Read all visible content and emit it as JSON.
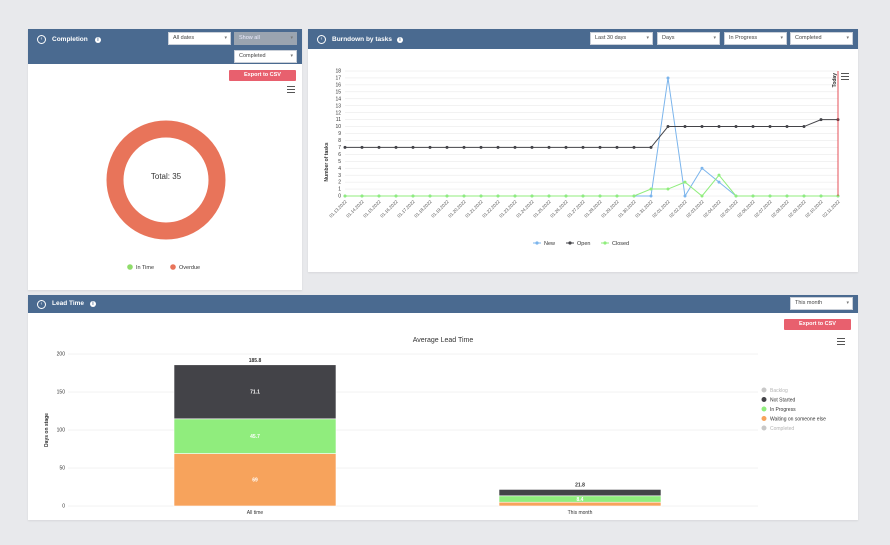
{
  "completion": {
    "title": "Completion",
    "filter_dates": "All dates",
    "filter_show": "Show all",
    "filter_status": "Completed",
    "export_label": "Export to CSV",
    "total_text": "Total: 35",
    "legend": [
      {
        "label": "In Time",
        "color": "#8fdc6a"
      },
      {
        "label": "Overdue",
        "color": "#e8745a"
      }
    ],
    "colors": {
      "donut": "#e8745a"
    }
  },
  "burndown": {
    "title": "Burndown by tasks",
    "filter_range": "Last 30 days",
    "filter_unit": "Days",
    "filter_status_from": "In Progress",
    "filter_status_to": "Completed",
    "today_label": "Today",
    "legend": [
      {
        "label": "New",
        "color": "#7cb5ec"
      },
      {
        "label": "Open",
        "color": "#434348"
      },
      {
        "label": "Closed",
        "color": "#90ed7d"
      }
    ]
  },
  "leadtime": {
    "title": "Lead Time",
    "filter_period": "This month",
    "export_label": "Export to CSV",
    "legend": [
      {
        "label": "Backlog",
        "color": "#c8c8c8",
        "muted": true
      },
      {
        "label": "Not Started",
        "color": "#434348",
        "muted": false
      },
      {
        "label": "In Progress",
        "color": "#90ed7d",
        "muted": false
      },
      {
        "label": "Waiting on someone else",
        "color": "#f7a35c",
        "muted": false
      },
      {
        "label": "Completed",
        "color": "#c8c8c8",
        "muted": true
      }
    ]
  },
  "chart_data": [
    {
      "type": "pie",
      "title": "Total: 35",
      "categories": [
        "In Time",
        "Overdue"
      ],
      "values": [
        0,
        35
      ]
    },
    {
      "type": "line",
      "title": "",
      "ylabel": "Number of tasks",
      "xlabel": "",
      "ylim": [
        0,
        18
      ],
      "yticks": [
        0,
        1,
        2,
        3,
        4,
        5,
        6,
        7,
        8,
        9,
        10,
        11,
        12,
        13,
        14,
        15,
        16,
        17,
        18
      ],
      "x": [
        "01.13.2022",
        "01.14.2022",
        "01.15.2022",
        "01.16.2022",
        "01.17.2022",
        "01.18.2022",
        "01.19.2022",
        "01.20.2022",
        "01.21.2022",
        "01.22.2022",
        "01.23.2022",
        "01.24.2022",
        "01.25.2022",
        "01.26.2022",
        "01.27.2022",
        "01.28.2022",
        "01.29.2022",
        "01.30.2022",
        "01.31.2022",
        "02.01.2022",
        "02.02.2022",
        "02.03.2022",
        "02.04.2022",
        "02.05.2022",
        "02.06.2022",
        "02.07.2022",
        "02.08.2022",
        "02.09.2022",
        "02.10.2022",
        "02.11.2022"
      ],
      "series": [
        {
          "name": "New",
          "values": [
            0,
            0,
            0,
            0,
            0,
            0,
            0,
            0,
            0,
            0,
            0,
            0,
            0,
            0,
            0,
            0,
            0,
            0,
            0,
            17,
            0,
            4,
            2,
            0,
            0,
            0,
            0,
            0,
            0,
            0
          ]
        },
        {
          "name": "Open",
          "values": [
            7,
            7,
            7,
            7,
            7,
            7,
            7,
            7,
            7,
            7,
            7,
            7,
            7,
            7,
            7,
            7,
            7,
            7,
            7,
            10,
            10,
            10,
            10,
            10,
            10,
            10,
            10,
            10,
            11,
            11
          ]
        },
        {
          "name": "Closed",
          "values": [
            0,
            0,
            0,
            0,
            0,
            0,
            0,
            0,
            0,
            0,
            0,
            0,
            0,
            0,
            0,
            0,
            0,
            0,
            1,
            1,
            2,
            0,
            3,
            0,
            0,
            0,
            0,
            0,
            0,
            0
          ]
        }
      ],
      "annotations": [
        "Today"
      ]
    },
    {
      "type": "bar",
      "title": "Average Lead Time",
      "ylabel": "Days on stage",
      "ylim": [
        0,
        200
      ],
      "yticks": [
        0,
        50,
        100,
        150,
        200
      ],
      "categories": [
        "All time",
        "This month"
      ],
      "totals": [
        "185.8",
        "21.8"
      ],
      "series": [
        {
          "name": "Waiting on someone else",
          "values": [
            69,
            5
          ]
        },
        {
          "name": "In Progress",
          "values": [
            45.7,
            8.4
          ]
        },
        {
          "name": "Not Started",
          "values": [
            71.1,
            8.4
          ]
        }
      ],
      "segment_labels": [
        [
          "69",
          "45.7",
          "71.1"
        ],
        [
          "",
          "8.4",
          ""
        ]
      ]
    }
  ]
}
